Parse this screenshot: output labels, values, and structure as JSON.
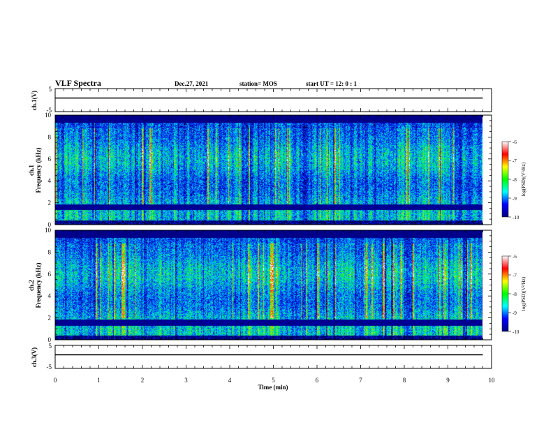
{
  "header": {
    "title": "VLF Spectra",
    "date": "Dec.27, 2021",
    "station": "station= MOS",
    "start_time": "start UT =  12: 0  : 1"
  },
  "chart_data": [
    {
      "id": "ch1-waveform",
      "type": "line",
      "ylabel": "ch.1(V)",
      "ylim": [
        -5,
        5
      ],
      "y_ticks": [
        "5",
        "-5"
      ],
      "xlim": [
        0,
        10
      ],
      "series": [
        {
          "x": [
            0,
            9.8
          ],
          "y": [
            0,
            0
          ]
        }
      ]
    },
    {
      "id": "ch1-spectrogram",
      "type": "heatmap",
      "ylabel": "ch.1\nFrequency (kHz)",
      "ylim": [
        0,
        10
      ],
      "y_ticks": [
        "0",
        "2",
        "4",
        "6",
        "8",
        "10"
      ],
      "xlim": [
        0,
        10
      ],
      "data_x_end": 9.8,
      "dark_band_khz": [
        1.4,
        1.9
      ],
      "colorbar": {
        "label": "log(PSD)(V²/Hz)",
        "range": [
          -10,
          -6
        ],
        "ticks": [
          "-6",
          "-7",
          "-8",
          "-9",
          "-10"
        ],
        "colors": [
          "#000080",
          "#0000ff",
          "#00ffff",
          "#00ff00",
          "#ffff00",
          "#ff0000",
          "#ffffff"
        ]
      }
    },
    {
      "id": "ch2-spectrogram",
      "type": "heatmap",
      "ylabel": "ch.2\nFrequency (kHz)",
      "ylim": [
        0,
        10
      ],
      "y_ticks": [
        "0",
        "2",
        "4",
        "6",
        "8",
        "10"
      ],
      "xlim": [
        0,
        10
      ],
      "data_x_end": 9.8,
      "dark_band_khz": [
        1.3,
        1.9
      ],
      "colorbar": {
        "label": "log(PSD)(V²/Hz)",
        "range": [
          -10,
          -6
        ],
        "ticks": [
          "-6",
          "-7",
          "-8",
          "-9",
          "-10"
        ],
        "colors": [
          "#000080",
          "#0000ff",
          "#00ffff",
          "#00ff00",
          "#ffff00",
          "#ff0000",
          "#ffffff"
        ]
      }
    },
    {
      "id": "ch3-waveform",
      "type": "line",
      "ylabel": "ch.3(V)",
      "ylim": [
        -5,
        5
      ],
      "y_ticks": [
        "5",
        "-5"
      ],
      "xlim": [
        0,
        10
      ],
      "xlabel": "Time (min)",
      "x_ticks": [
        "0",
        "1",
        "2",
        "3",
        "4",
        "5",
        "6",
        "7",
        "8",
        "9",
        "10"
      ],
      "series": [
        {
          "x": [
            0,
            9.8
          ],
          "y": [
            0,
            0
          ]
        }
      ]
    }
  ]
}
